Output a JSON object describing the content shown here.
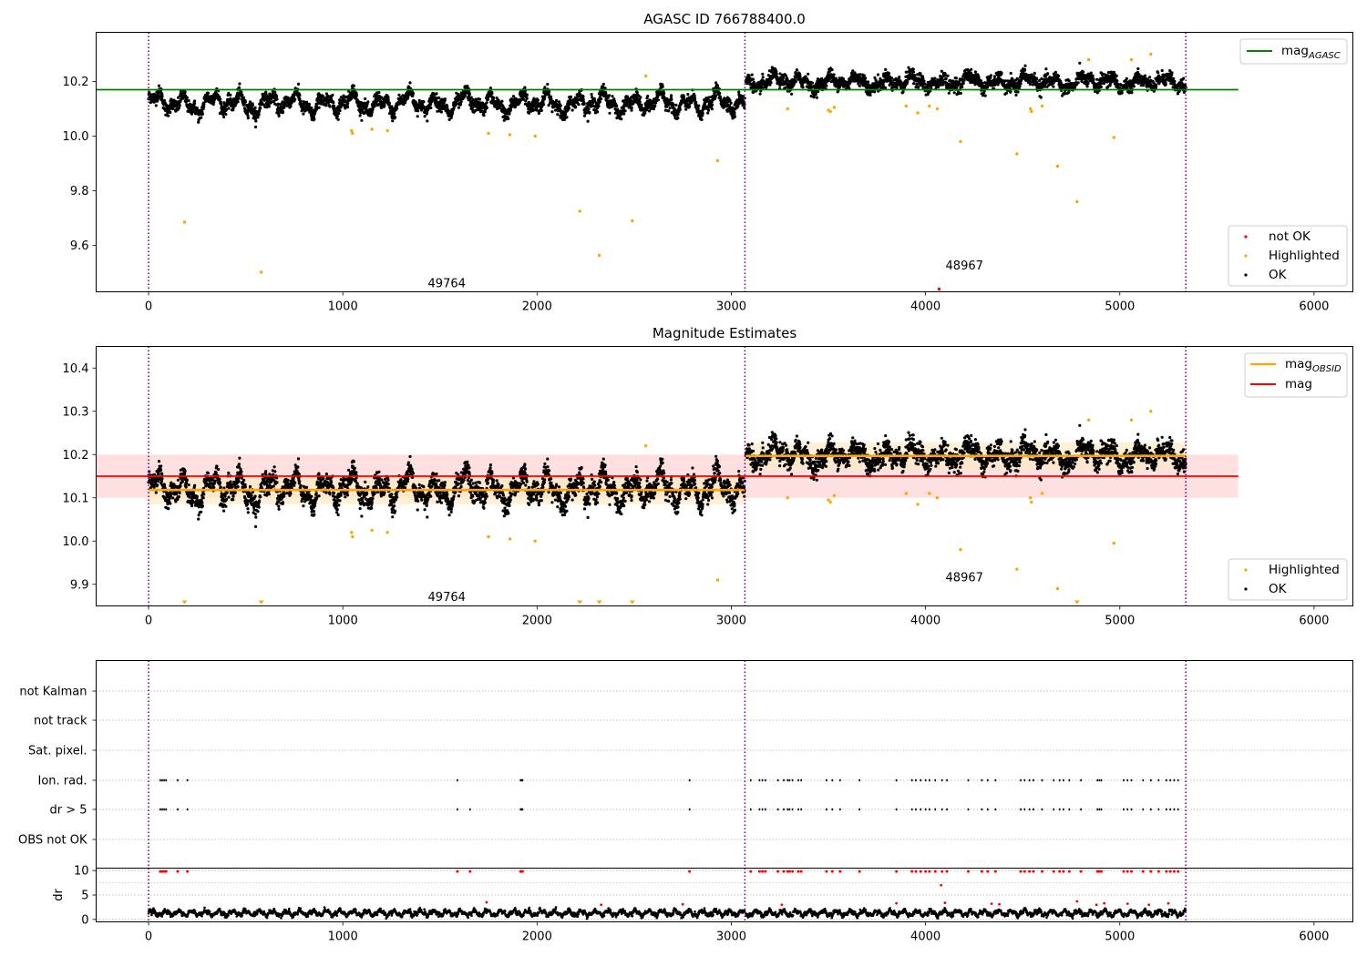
{
  "figure": {
    "panels": [
      "magnitudes",
      "estimates",
      "flags"
    ]
  },
  "colors": {
    "ok": "#000000",
    "highlighted": "#ffa500",
    "not_ok": "#ff0000",
    "agasc_line": "#008000",
    "obsid_line": "#ffa500",
    "mean_line": "#ff0000",
    "mean_band": "#ffdddd",
    "obsid_band": "#ffe9c4",
    "boundary": "#800080",
    "grid": "#b0b0b0"
  },
  "chart_data": [
    {
      "type": "scatter",
      "title": "AGASC ID 766788400.0",
      "xlim": [
        -270,
        6200
      ],
      "ylim": [
        9.43,
        10.38
      ],
      "x_ticks": [
        "0",
        "1000",
        "2000",
        "3000",
        "4000",
        "5000",
        "6000"
      ],
      "y_ticks": [
        "9.6",
        "9.8",
        "10.0",
        "10.2"
      ],
      "grid": false,
      "obsid_boundaries": [
        0,
        3070,
        5340
      ],
      "obsid_labels": [
        {
          "text": "49764",
          "x": 1535,
          "y": 9.46
        },
        {
          "text": "48967",
          "x": 4200,
          "y": 9.525
        }
      ],
      "horizontal_lines": [
        {
          "name": "magAGASC",
          "legend": "mag",
          "legend_sub": "AGASC",
          "y": 10.17,
          "x_range": [
            -270,
            5610
          ]
        }
      ],
      "ok_series": {
        "name": "OK",
        "segments": [
          {
            "x_range": [
              0,
              3070
            ],
            "mean": 10.12,
            "amplitude": 0.045
          },
          {
            "x_range": [
              3075,
              5340
            ],
            "mean": 10.198,
            "amplitude": 0.03
          }
        ]
      },
      "highlighted_points": {
        "name": "Highlighted",
        "points": [
          [
            185,
            9.685
          ],
          [
            580,
            9.502
          ],
          [
            1045,
            10.02
          ],
          [
            1050,
            10.01
          ],
          [
            1150,
            10.025
          ],
          [
            1230,
            10.02
          ],
          [
            1750,
            10.01
          ],
          [
            1860,
            10.005
          ],
          [
            1990,
            10.0
          ],
          [
            2220,
            9.725
          ],
          [
            2320,
            9.563
          ],
          [
            2490,
            9.69
          ],
          [
            2560,
            10.22
          ],
          [
            2930,
            9.91
          ],
          [
            3290,
            10.1
          ],
          [
            3500,
            10.095
          ],
          [
            3510,
            10.09
          ],
          [
            3530,
            10.105
          ],
          [
            3900,
            10.11
          ],
          [
            3960,
            10.085
          ],
          [
            4020,
            10.11
          ],
          [
            4060,
            10.1
          ],
          [
            4180,
            9.98
          ],
          [
            4470,
            9.935
          ],
          [
            4540,
            10.1
          ],
          [
            4545,
            10.09
          ],
          [
            4600,
            10.11
          ],
          [
            4680,
            9.89
          ],
          [
            4780,
            9.76
          ],
          [
            4840,
            10.28
          ],
          [
            4970,
            9.995
          ],
          [
            5060,
            10.28
          ],
          [
            5160,
            10.3
          ]
        ]
      },
      "not_ok_points": {
        "name": "not OK",
        "points": [
          [
            4070,
            9.44
          ]
        ]
      },
      "legends": {
        "upper": {
          "placement": "top-right",
          "entries": [
            "magAGASC"
          ]
        },
        "lower": {
          "placement": "bottom-right",
          "entries": [
            "not OK",
            "Highlighted",
            "OK"
          ]
        }
      }
    },
    {
      "type": "scatter",
      "title": "Magnitude Estimates",
      "xlim": [
        -270,
        6200
      ],
      "ylim": [
        9.85,
        10.45
      ],
      "x_ticks": [
        "0",
        "1000",
        "2000",
        "3000",
        "4000",
        "5000",
        "6000"
      ],
      "y_ticks": [
        "9.9",
        "10.0",
        "10.1",
        "10.2",
        "10.3",
        "10.4"
      ],
      "grid": false,
      "obsid_boundaries": [
        0,
        3070,
        5340
      ],
      "obsid_labels": [
        {
          "text": "49764",
          "x": 1535,
          "y": 9.87
        },
        {
          "text": "48967",
          "x": 4200,
          "y": 9.915
        }
      ],
      "mean_line": {
        "legend": "mag",
        "y": 10.15,
        "band": [
          10.1,
          10.2
        ],
        "x_range": [
          -270,
          5610
        ]
      },
      "obsid_means": {
        "legend": "mag",
        "legend_sub": "OBSID",
        "segments": [
          {
            "x_range": [
              0,
              3070
            ],
            "y": 10.118,
            "band": [
              10.085,
              10.15
            ]
          },
          {
            "x_range": [
              3075,
              5340
            ],
            "y": 10.197,
            "band": [
              10.165,
              10.228
            ]
          }
        ]
      },
      "below_range_markers": [
        185,
        580,
        2220,
        2320,
        2490,
        4780
      ],
      "legends": {
        "upper": {
          "placement": "top-right",
          "entries": [
            "magOBSID",
            "mag"
          ]
        },
        "lower": {
          "placement": "bottom-right",
          "entries": [
            "Highlighted",
            "OK"
          ]
        }
      }
    },
    {
      "type": "scatter",
      "title": "",
      "xlim": [
        -270,
        6200
      ],
      "x_ticks": [
        "0",
        "1000",
        "2000",
        "3000",
        "4000",
        "5000",
        "6000"
      ],
      "flag_rows": [
        "not Kalman",
        "not track",
        "Sat. pixel.",
        "Ion. rad.",
        "dr > 5",
        "OBS not OK"
      ],
      "flag_events": {
        "Ion. rad.": [
          60,
          70,
          80,
          90,
          150,
          200,
          1590,
          1915,
          1920,
          1925,
          2785,
          3100,
          3145,
          3160,
          3175,
          3240,
          3270,
          3290,
          3300,
          3315,
          3345,
          3360,
          3490,
          3520,
          3560,
          3660,
          3850,
          3930,
          3950,
          3975,
          4000,
          4020,
          4050,
          4085,
          4110,
          4220,
          4290,
          4320,
          4360,
          4490,
          4510,
          4535,
          4555,
          4600,
          4660,
          4690,
          4710,
          4740,
          4800,
          4885,
          4895,
          4905,
          5020,
          5040,
          5060,
          5120,
          5160,
          5200,
          5240,
          5260,
          5280,
          5300
        ],
        "dr > 5": [
          60,
          70,
          80,
          90,
          150,
          200,
          1590,
          1655,
          1915,
          1920,
          1925,
          2785,
          3100,
          3145,
          3160,
          3175,
          3240,
          3270,
          3290,
          3300,
          3315,
          3345,
          3360,
          3490,
          3520,
          3560,
          3660,
          3850,
          3930,
          3950,
          3975,
          4000,
          4020,
          4050,
          4085,
          4110,
          4220,
          4290,
          4320,
          4360,
          4490,
          4510,
          4535,
          4555,
          4600,
          4660,
          4690,
          4710,
          4740,
          4800,
          4885,
          4895,
          4905,
          5020,
          5040,
          5060,
          5120,
          5160,
          5200,
          5240,
          5260,
          5280,
          5300
        ]
      },
      "dr": {
        "ylabel": "dr",
        "ylim": [
          -0.5,
          10.5
        ],
        "y_ticks": [
          "0",
          "5",
          "10"
        ],
        "baseline": 1.3,
        "clipped_at": 10,
        "outliers": [
          [
            1740,
            3.5
          ],
          [
            2330,
            3.0
          ],
          [
            2750,
            3.1
          ],
          [
            3260,
            3.0
          ],
          [
            3850,
            3.3
          ],
          [
            4080,
            7.0
          ],
          [
            4100,
            3.4
          ],
          [
            4340,
            3.2
          ],
          [
            4380,
            3.1
          ],
          [
            4780,
            3.7
          ],
          [
            4880,
            3.0
          ],
          [
            4920,
            3.3
          ],
          [
            5040,
            3.2
          ],
          [
            5150,
            3.0
          ],
          [
            5250,
            3.3
          ]
        ]
      }
    }
  ]
}
